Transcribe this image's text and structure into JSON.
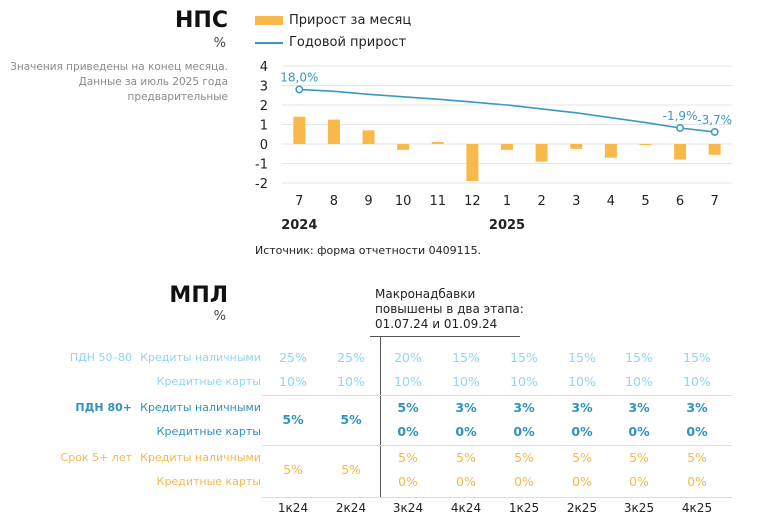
{
  "nps": {
    "title": "НПС",
    "unit": "%",
    "note": "Значения приведены на конец месяца. Данные за июль 2025 года предварительные",
    "source": "Источник: форма отчетности 0409115."
  },
  "chart_data": {
    "type": "bar",
    "categories": [
      "7",
      "8",
      "9",
      "10",
      "11",
      "12",
      "1",
      "2",
      "3",
      "4",
      "5",
      "6",
      "7"
    ],
    "year_labels": [
      {
        "label": "2024",
        "at": 0
      },
      {
        "label": "2025",
        "at": 6
      }
    ],
    "series": [
      {
        "name": "Прирост за месяц",
        "type": "bar",
        "color": "#f9b84a",
        "values": [
          1.4,
          1.25,
          0.7,
          -0.3,
          0.1,
          -1.9,
          -0.3,
          -0.9,
          -0.25,
          -0.7,
          0.0,
          -0.8,
          -0.55
        ]
      },
      {
        "name": "Годовой прирост",
        "type": "line",
        "color": "#3a98c0",
        "values": [
          2.8,
          2.7,
          2.55,
          2.42,
          2.3,
          2.15,
          2.0,
          1.8,
          1.6,
          1.35,
          1.1,
          0.82,
          0.62
        ],
        "data_labels": [
          {
            "index": 0,
            "text": "18,0%"
          },
          {
            "index": 11,
            "text": "-1,9%"
          },
          {
            "index": 12,
            "text": "-3,7%"
          }
        ]
      }
    ],
    "yticks": [
      4,
      3,
      2,
      1,
      0,
      -1,
      -2
    ],
    "ylim": [
      -2,
      4
    ],
    "grid": true,
    "legend": "top"
  },
  "mpl": {
    "title": "МПЛ",
    "unit": "%",
    "annotation": [
      "Макронадбавки",
      "повышены в два этапа:",
      "01.07.24 и 01.09.24"
    ],
    "quarters": [
      "1к24",
      "2к24",
      "3к24",
      "4к24",
      "1к25",
      "2к25",
      "3к25",
      "4к25"
    ],
    "groups": [
      {
        "name": "ПДН 50–80",
        "style": "lt",
        "merged_first_two": false,
        "rows": [
          {
            "label": "Кредиты наличными",
            "values": [
              "25%",
              "25%",
              "20%",
              "15%",
              "15%",
              "15%",
              "15%",
              "15%"
            ]
          },
          {
            "label": "Кредитные карты",
            "values": [
              "10%",
              "10%",
              "10%",
              "10%",
              "10%",
              "10%",
              "10%",
              "10%"
            ]
          }
        ]
      },
      {
        "name": "ПДН 80+",
        "style": "tl",
        "merged_first_two": true,
        "merged": [
          "5%",
          "5%"
        ],
        "rows": [
          {
            "label": "Кредиты наличными",
            "values": [
              "5%",
              "3%",
              "3%",
              "3%",
              "3%",
              "3%"
            ]
          },
          {
            "label": "Кредитные карты",
            "values": [
              "0%",
              "0%",
              "0%",
              "0%",
              "0%",
              "0%"
            ]
          }
        ]
      },
      {
        "name": "Срок 5+ лет",
        "style": "or",
        "merged_first_two": true,
        "merged": [
          "5%",
          "5%"
        ],
        "rows": [
          {
            "label": "Кредиты наличными",
            "values": [
              "5%",
              "5%",
              "5%",
              "5%",
              "5%",
              "5%"
            ]
          },
          {
            "label": "Кредитные карты",
            "values": [
              "0%",
              "0%",
              "0%",
              "0%",
              "0%",
              "0%"
            ]
          }
        ]
      }
    ]
  }
}
